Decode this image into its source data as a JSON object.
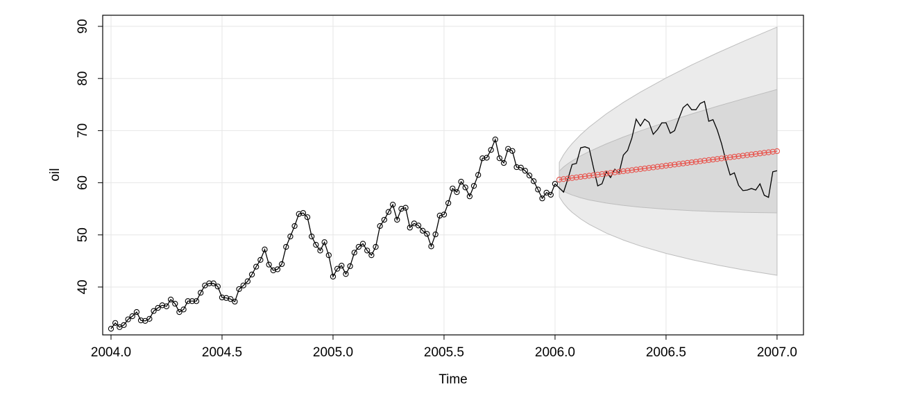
{
  "chart_data": {
    "type": "line",
    "x_label": "Time",
    "y_label": "oil",
    "xlim": [
      2003.9625,
      2007.119
    ],
    "ylim": [
      30.82,
      92.13
    ],
    "xticks": [
      {
        "value": 2004,
        "label": "2004.0"
      },
      {
        "value": 2004.5,
        "label": "2004.5"
      },
      {
        "value": 2005,
        "label": "2005.0"
      },
      {
        "value": 2005.5,
        "label": "2005.5"
      },
      {
        "value": 2006,
        "label": "2006.0"
      },
      {
        "value": 2006.5,
        "label": "2006.5"
      },
      {
        "value": 2007,
        "label": "2007.0"
      }
    ],
    "yticks": [
      40,
      50,
      60,
      70,
      80,
      90
    ],
    "grid": true,
    "bands": [
      {
        "color": "#ebebeb",
        "x": [
          2006.0192,
          2006.0385,
          2006.0577,
          2006.0769,
          2006.1154,
          2006.1538,
          2006.2308,
          2006.3077,
          2006.3846,
          2006.5,
          2006.6154,
          2006.7308,
          2006.8462,
          2007.0
        ],
        "lower": [
          57.3,
          56.04,
          55.09,
          54.32,
          53.06,
          52.02,
          50.35,
          49.01,
          47.87,
          46.45,
          45.25,
          44.22,
          43.31,
          42.26
        ],
        "upper": [
          63.9,
          65.38,
          66.53,
          67.52,
          69.22,
          70.68,
          73.21,
          75.41,
          77.39,
          80.11,
          82.59,
          84.9,
          87.09,
          89.86
        ]
      },
      {
        "color": "#d9d9d9",
        "x": [
          2006.0192,
          2006.0385,
          2006.0577,
          2006.0769,
          2006.1154,
          2006.1538,
          2006.2308,
          2006.3077,
          2006.3846,
          2006.5,
          2006.6154,
          2006.7308,
          2006.8462,
          2007.0
        ],
        "lower": [
          58.96,
          58.39,
          57.97,
          57.64,
          57.12,
          56.71,
          56.1,
          55.65,
          55.3,
          54.92,
          54.64,
          54.45,
          54.32,
          54.23
        ],
        "upper": [
          62.24,
          63.03,
          63.65,
          64.2,
          65.16,
          65.99,
          67.46,
          68.77,
          69.96,
          71.64,
          73.2,
          74.67,
          76.08,
          77.89
        ]
      }
    ],
    "series": [
      {
        "color": "#000000",
        "marker": true,
        "x": [
          2004.0,
          2004.0192,
          2004.0385,
          2004.0577,
          2004.0769,
          2004.0962,
          2004.1154,
          2004.1346,
          2004.1538,
          2004.1731,
          2004.1923,
          2004.2115,
          2004.2308,
          2004.25,
          2004.2692,
          2004.2885,
          2004.3077,
          2004.3269,
          2004.3462,
          2004.3654,
          2004.3846,
          2004.4038,
          2004.4231,
          2004.4423,
          2004.4615,
          2004.4808,
          2004.5,
          2004.5192,
          2004.5385,
          2004.5577,
          2004.5769,
          2004.5962,
          2004.6154,
          2004.6346,
          2004.6538,
          2004.6731,
          2004.6923,
          2004.7115,
          2004.7308,
          2004.75,
          2004.7692,
          2004.7885,
          2004.8077,
          2004.8269,
          2004.8462,
          2004.8654,
          2004.8846,
          2004.9038,
          2004.9231,
          2004.9423,
          2004.9615,
          2004.9808,
          2005.0,
          2005.0192,
          2005.0385,
          2005.0577,
          2005.0769,
          2005.0962,
          2005.1154,
          2005.1346,
          2005.1538,
          2005.1731,
          2005.1923,
          2005.2115,
          2005.2308,
          2005.25,
          2005.2692,
          2005.2885,
          2005.3077,
          2005.3269,
          2005.3462,
          2005.3654,
          2005.3846,
          2005.4038,
          2005.4231,
          2005.4423,
          2005.4615,
          2005.4808,
          2005.5,
          2005.5192,
          2005.5385,
          2005.5577,
          2005.5769,
          2005.5962,
          2005.6154,
          2005.6346,
          2005.6538,
          2005.6731,
          2005.6923,
          2005.7115,
          2005.7308,
          2005.75,
          2005.7692,
          2005.7885,
          2005.8077,
          2005.8269,
          2005.8462,
          2005.8654,
          2005.8846,
          2005.9038,
          2005.9231,
          2005.9423,
          2005.9615,
          2005.9808,
          2006.0
        ],
        "values": [
          32.0,
          33.1,
          32.3,
          32.7,
          33.8,
          34.4,
          35.2,
          33.6,
          33.5,
          33.9,
          35.4,
          36.0,
          36.5,
          36.3,
          37.6,
          36.8,
          35.2,
          35.7,
          37.3,
          37.3,
          37.3,
          38.9,
          40.3,
          40.7,
          40.7,
          40.1,
          38.0,
          37.9,
          37.7,
          37.2,
          39.6,
          40.3,
          41.1,
          42.4,
          43.9,
          45.2,
          47.2,
          44.3,
          43.2,
          43.4,
          44.4,
          47.7,
          49.7,
          51.7,
          54.0,
          54.2,
          53.4,
          49.7,
          48.1,
          47.0,
          48.6,
          46.1,
          42.0,
          43.5,
          44.1,
          42.5,
          44.0,
          46.6,
          47.7,
          48.3,
          47.0,
          46.1,
          47.7,
          51.7,
          52.9,
          54.4,
          55.8,
          52.9,
          55.0,
          55.2,
          51.4,
          52.2,
          51.8,
          50.8,
          50.2,
          47.8,
          50.1,
          53.7,
          53.9,
          56.1,
          58.9,
          58.2,
          60.2,
          59.1,
          57.4,
          59.4,
          61.5,
          64.7,
          64.8,
          66.3,
          68.3,
          64.7,
          63.8,
          66.5,
          66.1,
          63.0,
          62.9,
          62.3,
          61.4,
          60.3,
          58.7,
          57.0,
          58.1,
          57.7,
          59.8
        ]
      },
      {
        "color": "#000000",
        "marker": false,
        "x": [
          2006.0,
          2006.0192,
          2006.0385,
          2006.0577,
          2006.0769,
          2006.0962,
          2006.1154,
          2006.1346,
          2006.1538,
          2006.1731,
          2006.1923,
          2006.2115,
          2006.2308,
          2006.25,
          2006.2692,
          2006.2885,
          2006.3077,
          2006.3269,
          2006.3462,
          2006.3654,
          2006.3846,
          2006.4038,
          2006.4231,
          2006.4423,
          2006.4615,
          2006.4808,
          2006.5,
          2006.5192,
          2006.5385,
          2006.5577,
          2006.5769,
          2006.5962,
          2006.6154,
          2006.6346,
          2006.6538,
          2006.6731,
          2006.6923,
          2006.7115,
          2006.7308,
          2006.75,
          2006.7692,
          2006.7885,
          2006.8077,
          2006.8269,
          2006.8462,
          2006.8654,
          2006.8846,
          2006.9038,
          2006.9231,
          2006.9423,
          2006.9615,
          2006.9808,
          2007.0
        ],
        "values": [
          59.8,
          59.0,
          58.2,
          60.7,
          63.5,
          63.7,
          66.7,
          66.9,
          66.6,
          62.9,
          59.4,
          59.8,
          62.1,
          61.0,
          62.6,
          61.9,
          65.3,
          66.2,
          68.6,
          72.2,
          70.9,
          72.2,
          71.6,
          69.3,
          70.2,
          71.5,
          71.5,
          69.5,
          70.0,
          72.3,
          74.4,
          75.1,
          74.0,
          74.0,
          75.2,
          75.6,
          71.8,
          72.1,
          70.1,
          67.5,
          64.3,
          61.5,
          61.9,
          59.5,
          58.5,
          58.6,
          58.9,
          58.6,
          59.8,
          57.6,
          57.2,
          62.1,
          62.3
        ]
      },
      {
        "color": "#e8554e",
        "marker": true,
        "x": [
          2006.0192,
          2006.0385,
          2006.0577,
          2006.0769,
          2006.0962,
          2006.1154,
          2006.1346,
          2006.1538,
          2006.1731,
          2006.1923,
          2006.2115,
          2006.2308,
          2006.25,
          2006.2692,
          2006.2885,
          2006.3077,
          2006.3269,
          2006.3462,
          2006.3654,
          2006.3846,
          2006.4038,
          2006.4231,
          2006.4423,
          2006.4615,
          2006.4808,
          2006.5,
          2006.5192,
          2006.5385,
          2006.5577,
          2006.5769,
          2006.5962,
          2006.6154,
          2006.6346,
          2006.6538,
          2006.6731,
          2006.6923,
          2006.7115,
          2006.7308,
          2006.75,
          2006.7692,
          2006.7885,
          2006.8077,
          2006.8269,
          2006.8462,
          2006.8654,
          2006.8846,
          2006.9038,
          2006.9231,
          2006.9423,
          2006.9615,
          2006.9808,
          2007.0
        ],
        "values": [
          60.6,
          60.71,
          60.81,
          60.92,
          61.03,
          61.14,
          61.24,
          61.35,
          61.46,
          61.56,
          61.67,
          61.78,
          61.88,
          61.99,
          62.1,
          62.21,
          62.31,
          62.42,
          62.53,
          62.63,
          62.74,
          62.85,
          62.95,
          63.06,
          63.17,
          63.28,
          63.38,
          63.49,
          63.6,
          63.7,
          63.81,
          63.92,
          64.02,
          64.13,
          64.24,
          64.35,
          64.45,
          64.56,
          64.67,
          64.77,
          64.88,
          64.99,
          65.09,
          65.2,
          65.31,
          65.42,
          65.52,
          65.63,
          65.74,
          65.84,
          65.95,
          66.06
        ]
      }
    ]
  }
}
